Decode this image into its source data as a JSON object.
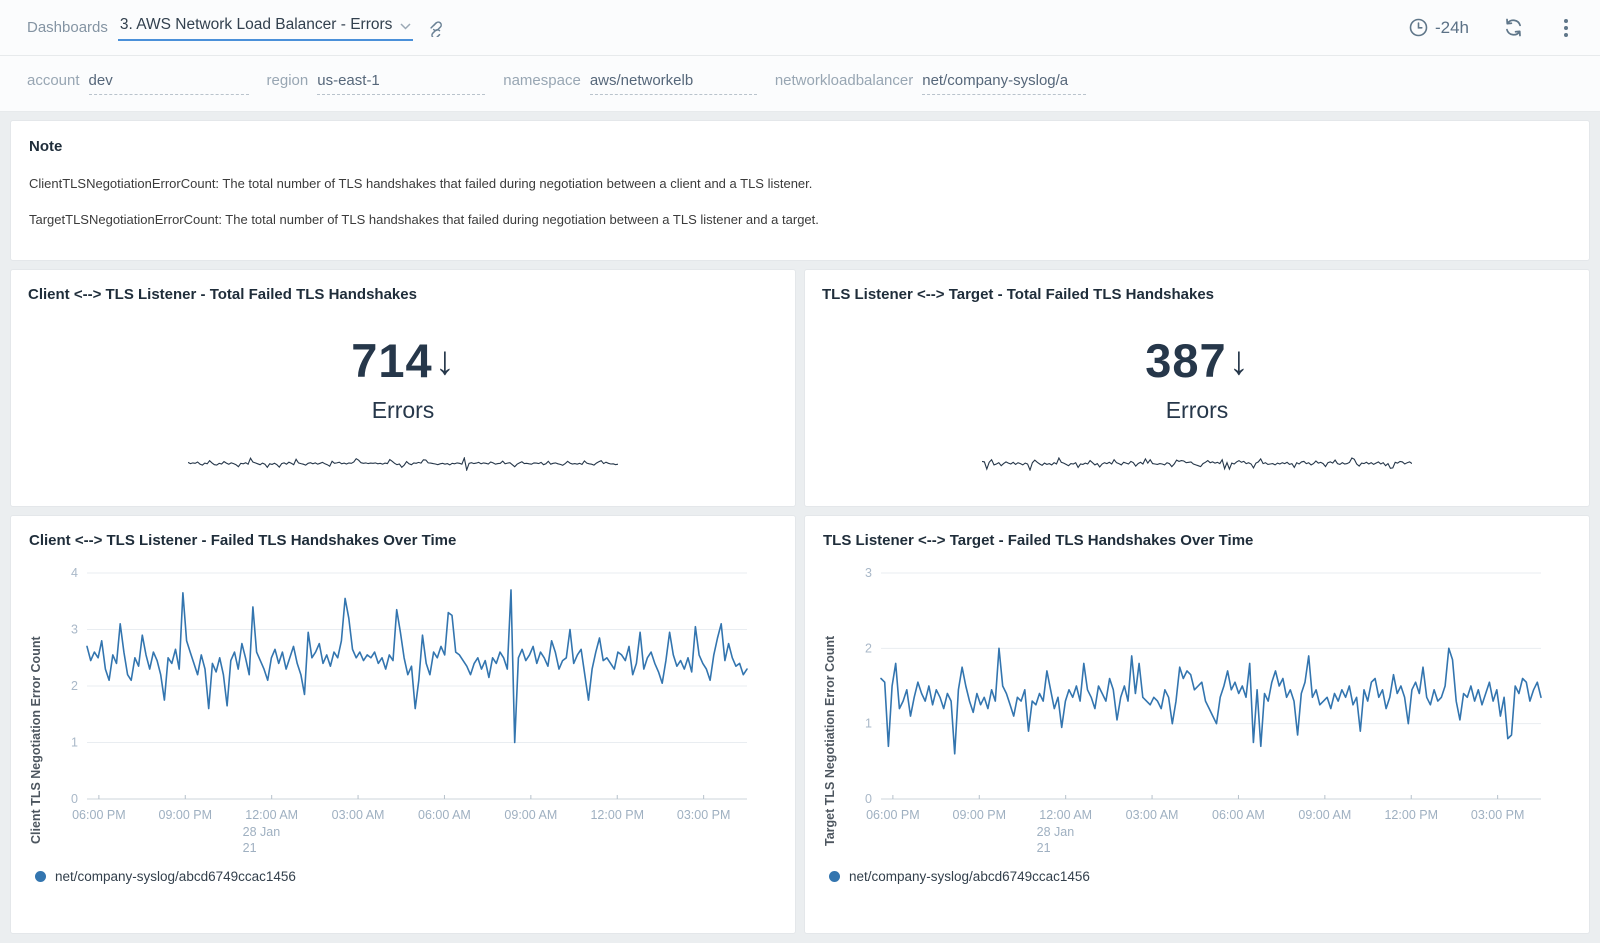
{
  "header": {
    "breadcrumb": "Dashboards",
    "title": "3. AWS Network Load Balancer - Errors",
    "time_range": "-24h"
  },
  "filters": [
    {
      "label": "account",
      "value": "dev"
    },
    {
      "label": "region",
      "value": "us-east-1"
    },
    {
      "label": "namespace",
      "value": "aws/networkelb"
    },
    {
      "label": "networkloadbalancer",
      "value": "net/company-syslog/a"
    }
  ],
  "note": {
    "title": "Note",
    "lines": [
      "ClientTLSNegotiationErrorCount: The total number of TLS handshakes that failed during negotiation between a client and a TLS listener.",
      "TargetTLSNegotiationErrorCount: The total number of TLS handshakes that failed during negotiation between a TLS listener and a target."
    ]
  },
  "panels": {
    "client_total": {
      "title": "Client <--> TLS Listener - Total Failed TLS Handshakes",
      "value": "714",
      "arrow": "↓",
      "unit": "Errors"
    },
    "target_total": {
      "title": "TLS Listener <--> Target - Total Failed TLS Handshakes",
      "value": "387",
      "arrow": "↓",
      "unit": "Errors"
    }
  },
  "colors": {
    "accent_underline": "#4a90d9",
    "line_blue": "#3375af",
    "big_number_navy": "#26374a",
    "icon_gray": "#5f7689"
  },
  "chart_data": [
    {
      "type": "line",
      "title": "Client <--> TLS Listener - Failed TLS Handshakes Over Time",
      "xlabel": "",
      "ylabel": "Client TLS Negotiation Error Count",
      "ylim": [
        0,
        4
      ],
      "yticks": [
        0,
        1,
        2,
        3,
        4
      ],
      "grid": true,
      "legend_position": "bottom",
      "xticks": [
        {
          "label": "06:00 PM"
        },
        {
          "label": "09:00 PM"
        },
        {
          "label": "12:00 AM",
          "sub": [
            "28 Jan",
            "21"
          ]
        },
        {
          "label": "03:00 AM"
        },
        {
          "label": "06:00 AM"
        },
        {
          "label": "09:00 AM"
        },
        {
          "label": "12:00 PM"
        },
        {
          "label": "03:00 PM"
        }
      ],
      "series": [
        {
          "name": "net/company-syslog/abcd6749ccac1456",
          "color": "#3375af",
          "values": [
            2.7,
            2.45,
            2.6,
            2.5,
            2.8,
            2.3,
            2.1,
            2.55,
            2.4,
            3.1,
            2.6,
            2.2,
            2.1,
            2.5,
            2.35,
            2.9,
            2.55,
            2.3,
            2.6,
            2.45,
            2.2,
            1.75,
            2.5,
            2.4,
            2.65,
            2.3,
            3.65,
            2.8,
            2.6,
            2.4,
            2.2,
            2.55,
            2.3,
            1.6,
            2.4,
            2.25,
            2.5,
            2.2,
            1.65,
            2.45,
            2.6,
            2.3,
            2.75,
            2.5,
            2.2,
            3.4,
            2.6,
            2.45,
            2.3,
            2.1,
            2.5,
            2.65,
            2.4,
            2.6,
            2.3,
            2.5,
            2.7,
            2.4,
            2.2,
            1.85,
            2.95,
            2.5,
            2.6,
            2.75,
            2.4,
            2.55,
            2.35,
            2.6,
            2.5,
            2.8,
            3.55,
            3.2,
            2.65,
            2.5,
            2.6,
            2.45,
            2.55,
            2.5,
            2.6,
            2.4,
            2.5,
            2.3,
            2.55,
            2.45,
            3.35,
            2.95,
            2.5,
            2.2,
            2.35,
            1.6,
            2.1,
            2.9,
            2.4,
            2.2,
            2.6,
            2.5,
            2.7,
            2.55,
            3.3,
            3.25,
            2.6,
            2.55,
            2.45,
            2.35,
            2.2,
            2.4,
            2.5,
            2.3,
            2.45,
            2.15,
            2.5,
            2.4,
            2.6,
            2.5,
            2.3,
            3.7,
            1.0,
            2.5,
            2.65,
            2.45,
            2.55,
            2.7,
            2.4,
            2.6,
            2.5,
            2.35,
            2.8,
            2.6,
            2.3,
            2.45,
            2.5,
            3.0,
            2.4,
            2.55,
            2.65,
            2.2,
            1.75,
            2.3,
            2.6,
            2.85,
            2.45,
            2.5,
            2.4,
            2.3,
            2.6,
            2.55,
            2.45,
            2.7,
            2.2,
            2.4,
            2.95,
            2.3,
            2.5,
            2.6,
            2.4,
            2.25,
            2.05,
            2.45,
            2.95,
            2.55,
            2.35,
            2.45,
            2.3,
            2.5,
            2.25,
            3.05,
            2.55,
            2.4,
            2.3,
            2.1,
            2.55,
            2.85,
            3.1,
            2.45,
            2.75,
            2.5,
            2.35,
            2.4,
            2.2,
            2.3
          ]
        }
      ]
    },
    {
      "type": "line",
      "title": "TLS Listener <--> Target - Failed TLS Handshakes Over Time",
      "xlabel": "",
      "ylabel": "Target TLS Negotiation Error Count",
      "ylim": [
        0,
        3
      ],
      "yticks": [
        0,
        1,
        2,
        3
      ],
      "grid": true,
      "legend_position": "bottom",
      "xticks": [
        {
          "label": "06:00 PM"
        },
        {
          "label": "09:00 PM"
        },
        {
          "label": "12:00 AM",
          "sub": [
            "28 Jan",
            "21"
          ]
        },
        {
          "label": "03:00 AM"
        },
        {
          "label": "06:00 AM"
        },
        {
          "label": "09:00 AM"
        },
        {
          "label": "12:00 PM"
        },
        {
          "label": "03:00 PM"
        }
      ],
      "series": [
        {
          "name": "net/company-syslog/abcd6749ccac1456",
          "color": "#3375af",
          "values": [
            1.6,
            1.55,
            0.7,
            1.5,
            1.8,
            1.2,
            1.3,
            1.45,
            1.1,
            1.35,
            1.55,
            1.4,
            1.3,
            1.5,
            1.25,
            1.45,
            1.35,
            1.2,
            1.4,
            1.3,
            0.6,
            1.45,
            1.75,
            1.5,
            1.3,
            1.15,
            1.4,
            1.25,
            1.35,
            1.2,
            1.45,
            1.3,
            2.0,
            1.5,
            1.4,
            1.25,
            1.1,
            1.35,
            1.3,
            1.45,
            0.9,
            1.3,
            1.25,
            1.4,
            1.3,
            1.7,
            1.45,
            1.2,
            1.35,
            0.95,
            1.3,
            1.45,
            1.35,
            1.5,
            1.3,
            1.8,
            1.45,
            1.35,
            1.2,
            1.5,
            1.4,
            1.3,
            1.6,
            1.45,
            1.05,
            1.35,
            1.5,
            1.3,
            1.9,
            1.4,
            1.8,
            1.35,
            1.3,
            1.25,
            1.35,
            1.3,
            1.2,
            1.45,
            1.35,
            1.0,
            1.3,
            1.75,
            1.6,
            1.7,
            1.65,
            1.45,
            1.5,
            1.55,
            1.3,
            1.2,
            1.1,
            1.0,
            1.35,
            1.5,
            1.7,
            1.45,
            1.55,
            1.4,
            1.5,
            1.35,
            1.8,
            0.75,
            1.45,
            0.7,
            1.4,
            1.3,
            1.55,
            1.7,
            1.5,
            1.6,
            1.35,
            1.45,
            1.3,
            0.85,
            1.4,
            1.55,
            1.9,
            1.35,
            1.45,
            1.25,
            1.3,
            1.35,
            1.2,
            1.4,
            1.3,
            1.45,
            1.35,
            1.5,
            1.25,
            1.35,
            0.9,
            1.45,
            1.3,
            1.55,
            1.6,
            1.35,
            1.45,
            1.2,
            1.35,
            1.65,
            1.4,
            1.5,
            1.35,
            1.0,
            1.45,
            1.55,
            1.4,
            1.75,
            1.35,
            1.25,
            1.45,
            1.3,
            1.35,
            1.5,
            2.0,
            1.85,
            1.3,
            1.05,
            1.4,
            1.35,
            1.5,
            1.3,
            1.45,
            1.25,
            1.4,
            1.55,
            1.3,
            1.45,
            1.1,
            1.35,
            0.8,
            0.85,
            1.5,
            1.4,
            1.6,
            1.55,
            1.3,
            1.45,
            1.55,
            1.35
          ]
        }
      ]
    }
  ]
}
